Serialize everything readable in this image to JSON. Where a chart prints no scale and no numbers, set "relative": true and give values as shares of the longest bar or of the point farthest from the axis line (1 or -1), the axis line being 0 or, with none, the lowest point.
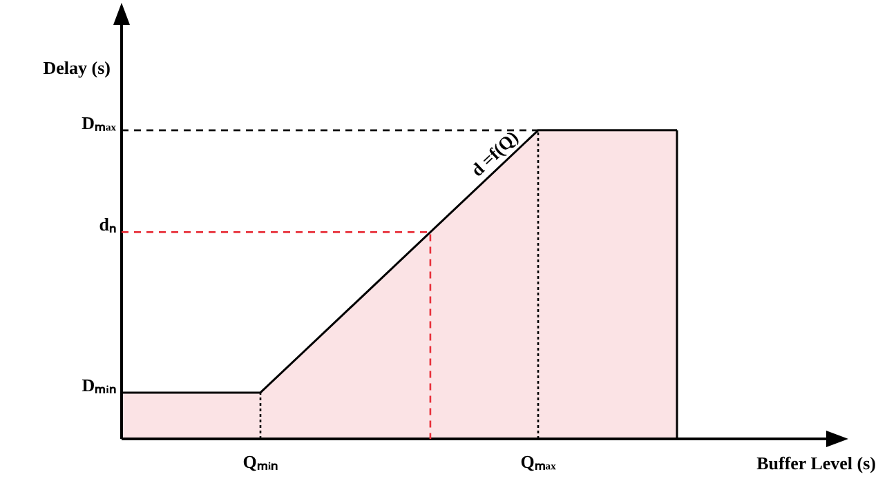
{
  "chart_data": {
    "type": "area",
    "xlabel": "Buffer Level (s)",
    "ylabel": "Delay (s)",
    "relative": true,
    "categories": [
      null,
      "Qₘᵢₙ",
      null,
      "Qₘₐₓ",
      null
    ],
    "series": [
      {
        "color": "#000000",
        "values": [
          0.15,
          0.15,
          0.575,
          1,
          1
        ]
      }
    ],
    "ref_lines": [
      {
        "axis": "y",
        "value": 1,
        "label": "Dₘₐₓ",
        "color": "#000000",
        "line_style": "dashed"
      },
      {
        "axis": "y",
        "value": 0.67,
        "label": "dₙ",
        "color": "#e8303a",
        "line_style": "dashed"
      },
      {
        "axis": "x",
        "value": "Qₘᵢₙ",
        "color": "#000000",
        "line_style": "dotted"
      },
      {
        "axis": "x",
        "value": "Qₘₐₓ",
        "color": "#000000",
        "line_style": "dotted"
      }
    ],
    "annotations": [
      "d =f(Q)",
      "Dₘᵢₙ"
    ],
    "marker": "none",
    "line_style": "solid"
  }
}
